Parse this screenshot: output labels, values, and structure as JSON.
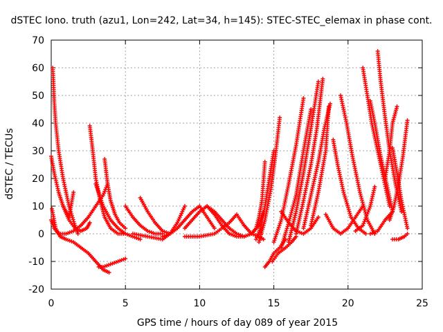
{
  "chart_data": {
    "type": "scatter",
    "title": "dSTEC Iono. truth (azu1, Lon=242, Lat=34, h=145): STEC-STEC_elemax in phase cont.",
    "xlabel": "GPS time / hours of day 089 of year 2015",
    "ylabel": "dSTEC  / TECUs",
    "xlim": [
      0,
      25
    ],
    "ylim": [
      -20,
      70
    ],
    "xticks": [
      0,
      5,
      10,
      15,
      20,
      25
    ],
    "yticks": [
      -20,
      -10,
      0,
      10,
      20,
      30,
      40,
      50,
      60,
      70
    ],
    "grid": true,
    "marker": "+",
    "color": "#ff0000",
    "series": [
      {
        "x": [
          0.0,
          0.2,
          0.5,
          1.0,
          1.5,
          2.0,
          2.5,
          3.0,
          3.5,
          3.8
        ],
        "y": [
          5,
          2,
          0,
          0,
          1,
          3,
          6,
          10,
          14,
          18
        ]
      },
      {
        "x": [
          0.05,
          0.3,
          0.6,
          1.0,
          1.5,
          2.0,
          2.5,
          3.0,
          3.5,
          3.9
        ],
        "y": [
          9,
          2,
          -1,
          -2,
          -3,
          -5,
          -7,
          -10,
          -13,
          -14
        ]
      },
      {
        "x": [
          0.1,
          0.15,
          0.2,
          0.3,
          0.5,
          0.8,
          1.2,
          1.6,
          1.8
        ],
        "y": [
          60,
          55,
          48,
          40,
          30,
          20,
          10,
          3,
          0
        ]
      },
      {
        "x": [
          0.0,
          0.2,
          0.5,
          0.8,
          1.2,
          1.5
        ],
        "y": [
          28,
          22,
          15,
          10,
          6,
          15
        ]
      },
      {
        "x": [
          0.8,
          1.2,
          1.6,
          2.0,
          2.4,
          2.6
        ],
        "y": [
          10,
          5,
          2,
          1,
          2,
          4
        ]
      },
      {
        "x": [
          2.6,
          2.8,
          3.0,
          3.3,
          3.6,
          4.0,
          4.5,
          5.0
        ],
        "y": [
          39,
          30,
          20,
          12,
          6,
          2,
          0,
          0
        ]
      },
      {
        "x": [
          3.6,
          3.8,
          4.0,
          4.3,
          4.6,
          5.0
        ],
        "y": [
          27,
          18,
          12,
          7,
          4,
          2
        ]
      },
      {
        "x": [
          3.2,
          3.5,
          4.0,
          4.5,
          5.0
        ],
        "y": [
          -12,
          -12,
          -11,
          -10,
          -9
        ]
      },
      {
        "x": [
          3.0,
          3.5,
          4.0,
          4.5,
          5.0,
          5.5,
          6.0
        ],
        "y": [
          18,
          10,
          5,
          2,
          0,
          -1,
          -2
        ]
      },
      {
        "x": [
          5.0,
          5.5,
          6.0,
          6.5,
          7.0,
          7.5
        ],
        "y": [
          10,
          6,
          3,
          1,
          0,
          0
        ]
      },
      {
        "x": [
          6.0,
          6.5,
          7.0,
          7.5,
          8.0
        ],
        "y": [
          13,
          8,
          4,
          1,
          0
        ]
      },
      {
        "x": [
          5.5,
          6.5,
          7.5,
          8.0,
          8.5,
          9.0
        ],
        "y": [
          0,
          -1,
          -2,
          0,
          4,
          10
        ]
      },
      {
        "x": [
          7.5,
          8.0,
          8.5,
          9.0,
          9.5,
          10.0,
          10.5,
          11.0
        ],
        "y": [
          -1,
          0,
          2,
          5,
          8,
          10,
          6,
          2
        ]
      },
      {
        "x": [
          9.0,
          9.5,
          10.0,
          10.5,
          11.0,
          11.5,
          12.0
        ],
        "y": [
          2,
          5,
          8,
          10,
          7,
          3,
          0
        ]
      },
      {
        "x": [
          10.5,
          11.0,
          11.5,
          12.0,
          12.5,
          13.0
        ],
        "y": [
          10,
          8,
          5,
          2,
          0,
          -1
        ]
      },
      {
        "x": [
          9.0,
          10.0,
          11.0,
          12.0,
          12.5,
          13.0
        ],
        "y": [
          -1,
          -1,
          0,
          4,
          7,
          3
        ]
      },
      {
        "x": [
          12.0,
          12.5,
          13.0,
          13.5,
          14.0,
          14.3
        ],
        "y": [
          0,
          -1,
          -1,
          0,
          3,
          8
        ]
      },
      {
        "x": [
          13.0,
          13.5,
          14.0,
          14.3
        ],
        "y": [
          3,
          0,
          -1,
          -2
        ]
      },
      {
        "x": [
          13.5,
          13.8,
          14.0,
          14.2,
          14.4
        ],
        "y": [
          0,
          2,
          6,
          12,
          26
        ]
      },
      {
        "x": [
          13.8,
          14.1,
          14.4,
          14.7,
          15.0
        ],
        "y": [
          -2,
          2,
          10,
          20,
          30
        ]
      },
      {
        "x": [
          14.0,
          14.4,
          14.8,
          15.1,
          15.4
        ],
        "y": [
          -3,
          5,
          16,
          28,
          42
        ]
      },
      {
        "x": [
          14.4,
          14.7,
          15.0,
          15.4,
          15.8
        ],
        "y": [
          -12,
          -10,
          -7,
          -5,
          -2
        ]
      },
      {
        "x": [
          14.9,
          15.3,
          15.8,
          16.2,
          16.5
        ],
        "y": [
          -10,
          -7,
          -5,
          -3,
          -1
        ]
      },
      {
        "x": [
          15.0,
          15.5,
          16.0,
          16.5,
          17.0
        ],
        "y": [
          -3,
          5,
          18,
          32,
          49
        ]
      },
      {
        "x": [
          15.5,
          16.0,
          16.5,
          17.0,
          17.5
        ],
        "y": [
          -5,
          4,
          14,
          30,
          45
        ]
      },
      {
        "x": [
          16.0,
          16.5,
          17.0,
          17.5,
          18.0
        ],
        "y": [
          -3,
          8,
          22,
          38,
          55
        ]
      },
      {
        "x": [
          16.5,
          17.0,
          17.5,
          17.9,
          18.3
        ],
        "y": [
          0,
          12,
          25,
          38,
          56
        ]
      },
      {
        "x": [
          17.0,
          17.5,
          18.0,
          18.4,
          18.8
        ],
        "y": [
          2,
          14,
          26,
          38,
          47
        ]
      },
      {
        "x": [
          17.5,
          18.0,
          18.5,
          18.7
        ],
        "y": [
          3,
          15,
          30,
          46
        ]
      },
      {
        "x": [
          15.5,
          16.0,
          16.5,
          17.0,
          17.5,
          18.0
        ],
        "y": [
          8,
          4,
          1,
          0,
          2,
          6
        ]
      },
      {
        "x": [
          18.5,
          19.0,
          19.5,
          20.0,
          20.5,
          21.0
        ],
        "y": [
          7,
          2,
          0,
          2,
          6,
          10
        ]
      },
      {
        "x": [
          19.0,
          19.3,
          19.7,
          20.2,
          20.7,
          21.2
        ],
        "y": [
          34,
          25,
          15,
          6,
          2,
          0
        ]
      },
      {
        "x": [
          19.5,
          19.9,
          20.3,
          20.8,
          21.3,
          21.8
        ],
        "y": [
          50,
          40,
          28,
          15,
          5,
          0
        ]
      },
      {
        "x": [
          20.5,
          21.0,
          21.5,
          21.8
        ],
        "y": [
          1,
          3,
          10,
          17
        ]
      },
      {
        "x": [
          21.0,
          21.3,
          21.6,
          22.0,
          22.4,
          22.8
        ],
        "y": [
          60,
          50,
          40,
          30,
          20,
          10
        ]
      },
      {
        "x": [
          21.5,
          21.8,
          22.2,
          22.6,
          23.0
        ],
        "y": [
          48,
          40,
          28,
          18,
          8
        ]
      },
      {
        "x": [
          22.0,
          22.2,
          22.5,
          22.8,
          23.2,
          23.6
        ],
        "y": [
          66,
          55,
          42,
          30,
          18,
          8
        ]
      },
      {
        "x": [
          22.5,
          22.8,
          23.0,
          23.3
        ],
        "y": [
          20,
          30,
          40,
          46
        ]
      },
      {
        "x": [
          22.8,
          23.1,
          23.4,
          23.7,
          24.0
        ],
        "y": [
          5,
          10,
          18,
          28,
          41
        ]
      },
      {
        "x": [
          23.0,
          23.3,
          23.6,
          24.0
        ],
        "y": [
          31,
          22,
          12,
          2
        ]
      },
      {
        "x": [
          23.0,
          23.4,
          23.8,
          24.0
        ],
        "y": [
          -2,
          -2,
          -1,
          0
        ]
      },
      {
        "x": [
          21.5,
          22.0,
          22.5,
          23.0
        ],
        "y": [
          0,
          1,
          5,
          8
        ]
      }
    ]
  }
}
